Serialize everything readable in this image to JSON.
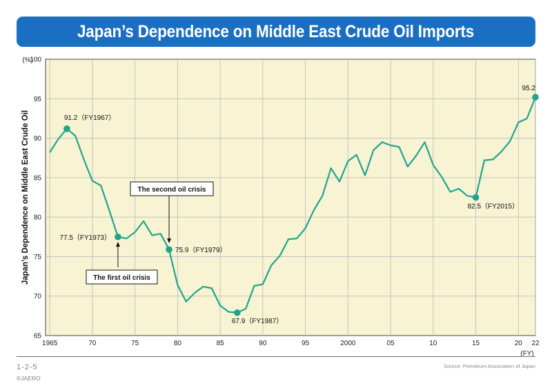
{
  "header": {
    "title": "Japan’s Dependence on Middle East Crude Oil Imports"
  },
  "footer": {
    "figure_no": "1-2-5",
    "copyright": "©JAERO",
    "source": "Source: Petroleum Association of Japan"
  },
  "colors": {
    "banner": "#1a6fc2",
    "line": "#1fa58c",
    "plot_bg": "#f7f3d3"
  },
  "chart_data": {
    "type": "line",
    "title": "Japan’s Dependence on Middle East Crude Oil Imports",
    "ylabel": "Japan’s Dependence on Middle East Crude Oil",
    "y_unit": "(%)",
    "x_unit": "(FY)",
    "ylim": [
      65,
      100
    ],
    "xlim": [
      1964.5,
      2022
    ],
    "y_ticks": [
      65,
      70,
      75,
      80,
      85,
      90,
      95,
      100
    ],
    "x_ticks": [
      {
        "value": 1965,
        "label": "1965"
      },
      {
        "value": 1970,
        "label": "70"
      },
      {
        "value": 1975,
        "label": "75"
      },
      {
        "value": 1980,
        "label": "80"
      },
      {
        "value": 1985,
        "label": "85"
      },
      {
        "value": 1990,
        "label": "90"
      },
      {
        "value": 1995,
        "label": "95"
      },
      {
        "value": 2000,
        "label": "2000"
      },
      {
        "value": 2005,
        "label": "05"
      },
      {
        "value": 2010,
        "label": "10"
      },
      {
        "value": 2015,
        "label": "15"
      },
      {
        "value": 2020,
        "label": "20"
      },
      {
        "value": 2022,
        "label": "22"
      }
    ],
    "grid": true,
    "series": [
      {
        "x": [
          1965,
          1966,
          1967,
          1968,
          1969,
          1970,
          1971,
          1972,
          1973,
          1974,
          1975,
          1976,
          1977,
          1978,
          1979,
          1980,
          1981,
          1982,
          1983,
          1984,
          1985,
          1986,
          1987,
          1988,
          1989,
          1990,
          1991,
          1992,
          1993,
          1994,
          1995,
          1996,
          1997,
          1998,
          1999,
          2000,
          2001,
          2002,
          2003,
          2004,
          2005,
          2006,
          2007,
          2008,
          2009,
          2010,
          2011,
          2012,
          2013,
          2014,
          2015,
          2016,
          2017,
          2018,
          2019,
          2020,
          2021,
          2022
        ],
        "y": [
          88.2,
          89.9,
          91.2,
          90.3,
          87.3,
          84.6,
          84.0,
          80.8,
          77.5,
          77.3,
          78.1,
          79.5,
          77.7,
          77.9,
          75.9,
          71.4,
          69.3,
          70.4,
          71.2,
          71.0,
          68.8,
          68.0,
          67.9,
          68.4,
          71.3,
          71.5,
          73.9,
          75.1,
          77.2,
          77.3,
          78.6,
          80.9,
          82.7,
          86.2,
          84.5,
          87.1,
          87.9,
          85.3,
          88.5,
          89.5,
          89.1,
          88.9,
          86.4,
          87.8,
          89.5,
          86.6,
          85.1,
          83.2,
          83.6,
          82.7,
          82.5,
          87.2,
          87.3,
          88.3,
          89.6,
          92.0,
          92.5,
          95.2
        ]
      }
    ],
    "annotations": [
      {
        "x": 1967,
        "y": 91.2,
        "label": "91.2（FY1967）"
      },
      {
        "x": 1973,
        "y": 77.5,
        "label": "77.5（FY1973）"
      },
      {
        "x": 1979,
        "y": 75.9,
        "label": "75.9（FY1979）"
      },
      {
        "x": 1987,
        "y": 67.9,
        "label": "67.9（FY1987）"
      },
      {
        "x": 2015,
        "y": 82.5,
        "label": "82.5（FY2015）"
      },
      {
        "x": 2022,
        "y": 95.2,
        "label": "95.2"
      }
    ],
    "callouts": [
      {
        "x": 1973,
        "label": "The first oil crisis"
      },
      {
        "x": 1979,
        "label": "The second oil crisis"
      }
    ]
  }
}
